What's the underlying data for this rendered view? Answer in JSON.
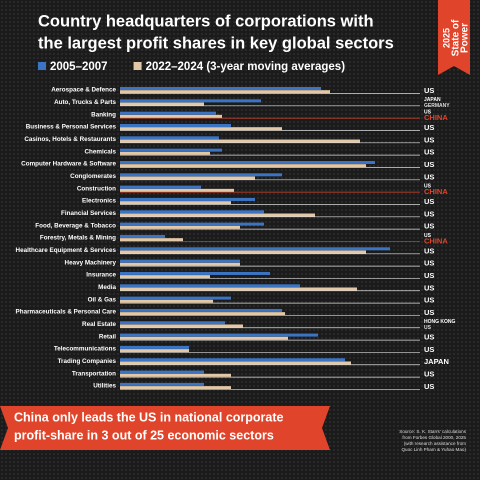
{
  "chart_data": {
    "type": "bar",
    "title": [
      "Country headquarters of corporations with",
      "the largest profit shares in key global sectors"
    ],
    "banner": [
      "2025",
      "State of",
      "Power"
    ],
    "categories": [
      "Aerospace & Defence",
      "Auto, Trucks & Parts",
      "Banking",
      "Business & Personal Services",
      "Casinos, Hotels & Restaurants",
      "Chemicals",
      "Computer Hardware & Software",
      "Conglomerates",
      "Construction",
      "Electronics",
      "Financial Services",
      "Food, Beverage & Tobacco",
      "Forestry, Metals & Mining",
      "Healthcare Equipment & Services",
      "Heavy Machinery",
      "Insurance",
      "Media",
      "Oil & Gas",
      "Pharmaceuticals & Personal Care",
      "Real Estate",
      "Retail",
      "Telecommunications",
      "Trading Companies",
      "Transportation",
      "Utilities"
    ],
    "series": [
      {
        "name": "2005–2007",
        "color": "#3b74c2",
        "values": [
          67,
          47,
          32,
          37,
          33,
          34,
          85,
          54,
          27,
          45,
          48,
          48,
          15,
          90,
          40,
          50,
          60,
          37,
          54,
          35,
          66,
          23,
          75,
          28,
          28
        ]
      },
      {
        "name": "2022–2024 (3-year moving averages)",
        "color": "#e3c8a8",
        "values": [
          70,
          28,
          34,
          54,
          80,
          30,
          82,
          45,
          38,
          37,
          65,
          40,
          21,
          82,
          40,
          30,
          79,
          31,
          55,
          41,
          56,
          23,
          77,
          37,
          37
        ]
      }
    ],
    "leaders": [
      [
        "US"
      ],
      [
        "JAPAN",
        "GERMANY"
      ],
      [
        "US",
        "CHINA"
      ],
      [
        "US"
      ],
      [
        "US"
      ],
      [
        "US"
      ],
      [
        "US"
      ],
      [
        "US"
      ],
      [
        "US",
        "CHINA"
      ],
      [
        "US"
      ],
      [
        "US"
      ],
      [
        "US"
      ],
      [
        "US",
        "CHINA"
      ],
      [
        "US"
      ],
      [
        "US"
      ],
      [
        "US"
      ],
      [
        "US"
      ],
      [
        "US"
      ],
      [
        "US"
      ],
      [
        "HONG KONG",
        "US"
      ],
      [
        "US"
      ],
      [
        "US"
      ],
      [
        "JAPAN"
      ],
      [
        "US"
      ],
      [
        "US"
      ]
    ],
    "leader_colors": [
      "#dddddd",
      "#dddddd",
      "#e0452b",
      "#dddddd",
      "#dddddd",
      "#dddddd",
      "#dddddd",
      "#dddddd",
      "#e0452b",
      "#dddddd",
      "#dddddd",
      "#dddddd",
      "#e0452b",
      "#dddddd",
      "#dddddd",
      "#dddddd",
      "#dddddd",
      "#dddddd",
      "#dddddd",
      "#dddddd",
      "#dddddd",
      "#dddddd",
      "#dddddd",
      "#dddddd",
      "#dddddd"
    ],
    "xlim": [
      0,
      100
    ],
    "annotation": [
      "China only leads the US in national corporate",
      "profit-share in 3 out of 25 economic sectors"
    ],
    "source": [
      "Source: S. K. Starrs' calculations",
      "from Forbes Global 2000, 2025",
      "(with research assistance from",
      "Quoc Linh Pham & Yuhao Mao)"
    ]
  }
}
